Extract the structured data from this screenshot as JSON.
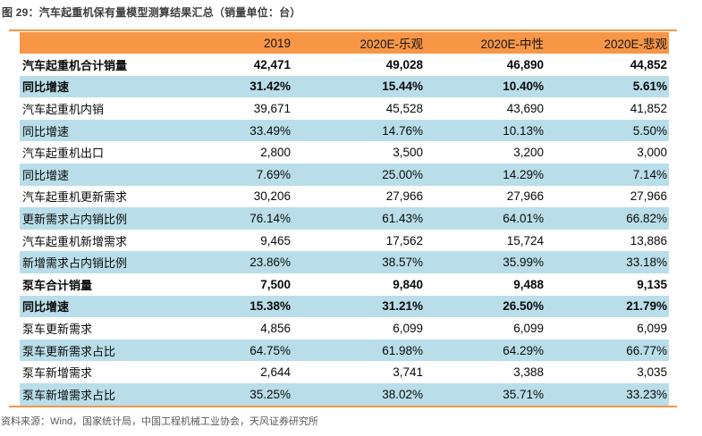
{
  "title": "图 29：汽车起重机保有量模型测算结果汇总（销量单位：台）",
  "source": "资料来源：Wind，国家统计局，中国工程机械工业协会，天风证券研究所",
  "colors": {
    "accent_orange": "#f79646",
    "row_blue": "#b9dee9",
    "source_gray": "#595959"
  },
  "chart_data": {
    "type": "table",
    "columns": [
      "",
      "2019",
      "2020E-乐观",
      "2020E-中性",
      "2020E-悲观"
    ],
    "rows": [
      {
        "label": "汽车起重机合计销量",
        "values": [
          "42,471",
          "49,028",
          "46,890",
          "44,852"
        ],
        "bold": true
      },
      {
        "label": "同比增速",
        "values": [
          "31.42%",
          "15.44%",
          "10.40%",
          "5.61%"
        ],
        "bold": true
      },
      {
        "label": "汽车起重机内销",
        "values": [
          "39,671",
          "45,528",
          "43,690",
          "41,852"
        ],
        "bold": false
      },
      {
        "label": "同比增速",
        "values": [
          "33.49%",
          "14.76%",
          "10.13%",
          "5.50%"
        ],
        "bold": false
      },
      {
        "label": "汽车起重机出口",
        "values": [
          "2,800",
          "3,500",
          "3,200",
          "3,000"
        ],
        "bold": false
      },
      {
        "label": "同比增速",
        "values": [
          "7.69%",
          "25.00%",
          "14.29%",
          "7.14%"
        ],
        "bold": false
      },
      {
        "label": "汽车起重机更新需求",
        "values": [
          "30,206",
          "27,966",
          "27,966",
          "27,966"
        ],
        "bold": false
      },
      {
        "label": "更新需求占内销比例",
        "values": [
          "76.14%",
          "61.43%",
          "64.01%",
          "66.82%"
        ],
        "bold": false
      },
      {
        "label": "汽车起重机新增需求",
        "values": [
          "9,465",
          "17,562",
          "15,724",
          "13,886"
        ],
        "bold": false
      },
      {
        "label": "新增需求占内销比例",
        "values": [
          "23.86%",
          "38.57%",
          "35.99%",
          "33.18%"
        ],
        "bold": false
      },
      {
        "label": "泵车合计销量",
        "values": [
          "7,500",
          "9,840",
          "9,488",
          "9,135"
        ],
        "bold": true
      },
      {
        "label": "同比增速",
        "values": [
          "15.38%",
          "31.21%",
          "26.50%",
          "21.79%"
        ],
        "bold": true
      },
      {
        "label": "泵车更新需求",
        "values": [
          "4,856",
          "6,099",
          "6,099",
          "6,099"
        ],
        "bold": false
      },
      {
        "label": "泵车更新需求占比",
        "values": [
          "64.75%",
          "61.98%",
          "64.29%",
          "66.77%"
        ],
        "bold": false
      },
      {
        "label": "泵车新增需求",
        "values": [
          "2,644",
          "3,741",
          "3,388",
          "3,035"
        ],
        "bold": false
      },
      {
        "label": "泵车新增需求占比",
        "values": [
          "35.25%",
          "38.02%",
          "35.71%",
          "33.23%"
        ],
        "bold": false
      }
    ]
  }
}
